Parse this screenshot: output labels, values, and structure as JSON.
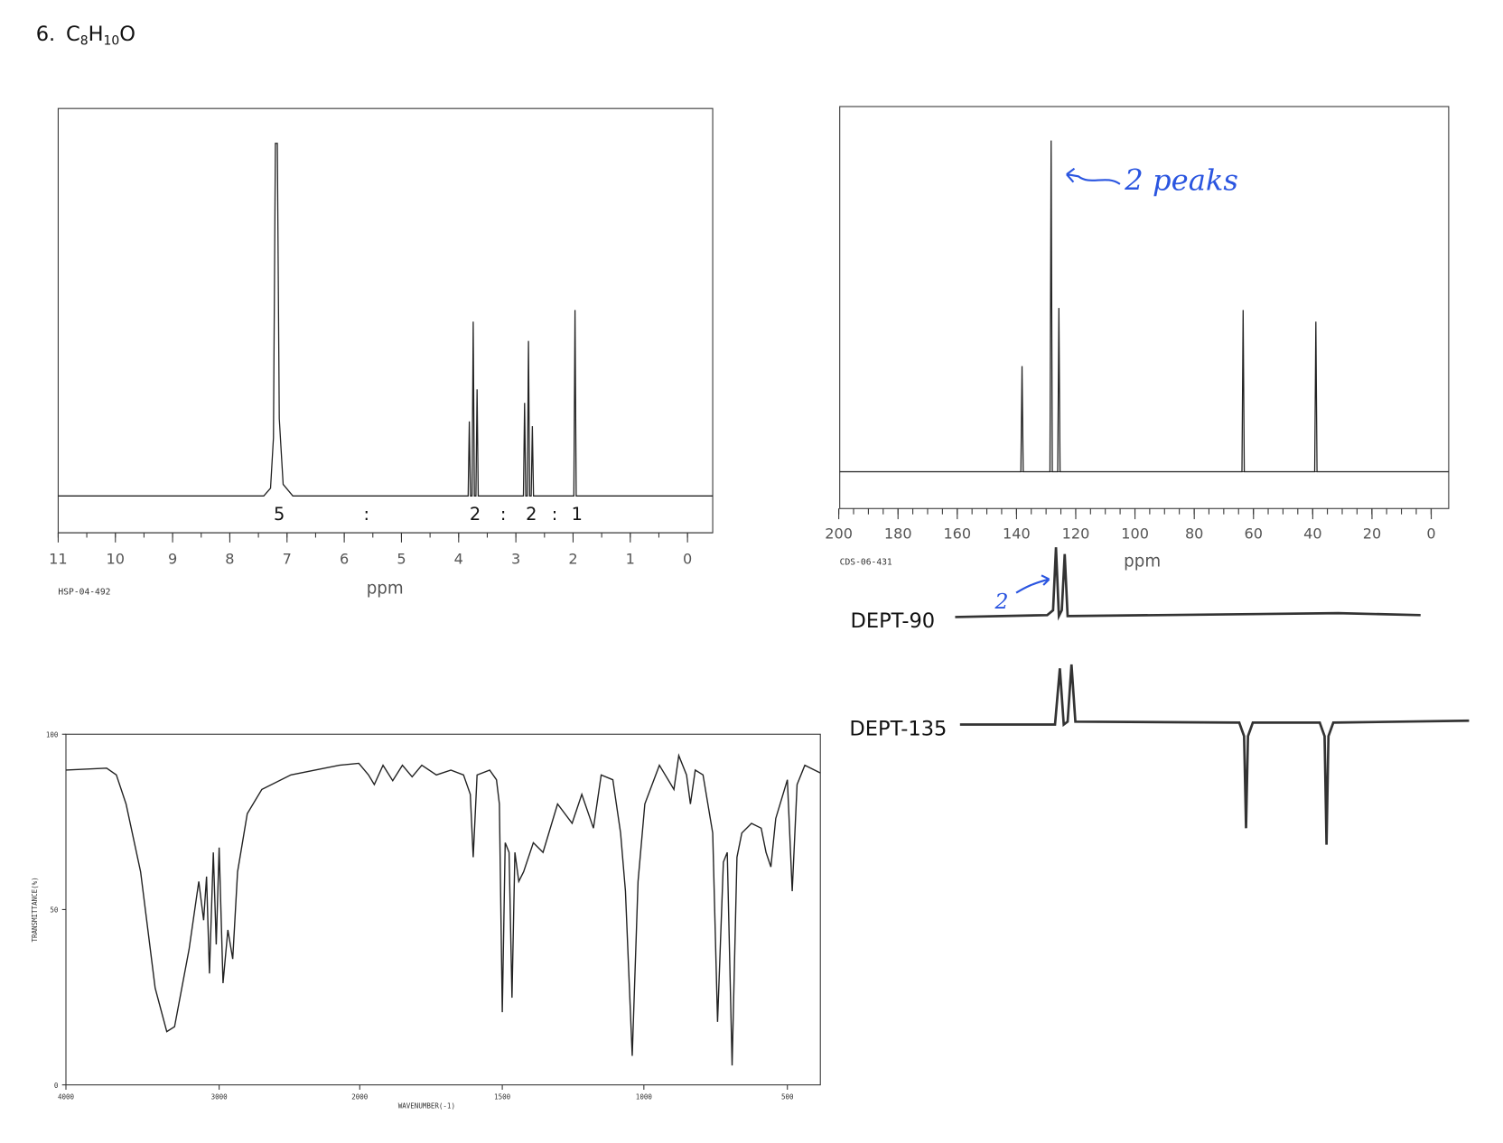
{
  "title": {
    "number": "6.",
    "formula": [
      "C",
      "8",
      "H",
      "10",
      "O"
    ]
  },
  "h_nmr": {
    "xticks": [
      "11",
      "10",
      "9",
      "8",
      "7",
      "6",
      "5",
      "4",
      "3",
      "2",
      "1",
      "0"
    ],
    "integrals": [
      "5",
      ":",
      "2",
      ":",
      "2",
      ":",
      "1"
    ],
    "code": "HSP-04-492",
    "xlabel": "ppm"
  },
  "c_nmr": {
    "xticks": [
      "200",
      "180",
      "160",
      "140",
      "120",
      "100",
      "80",
      "60",
      "40",
      "20",
      "0"
    ],
    "code": "CDS-06-431",
    "xlabel": "ppm",
    "annotation": "2 peaks"
  },
  "dept90": {
    "label": "DEPT-90",
    "annotation": "2"
  },
  "dept135": {
    "label": "DEPT-135"
  },
  "ir": {
    "yticks": [
      "100",
      "50",
      "0"
    ],
    "xticks": [
      "4000",
      "3000",
      "2000",
      "1500",
      "1000",
      "500"
    ],
    "ylabel": "TRANSMITTANCE(%)",
    "xlabel": "WAVENUMBER(-1)"
  }
}
